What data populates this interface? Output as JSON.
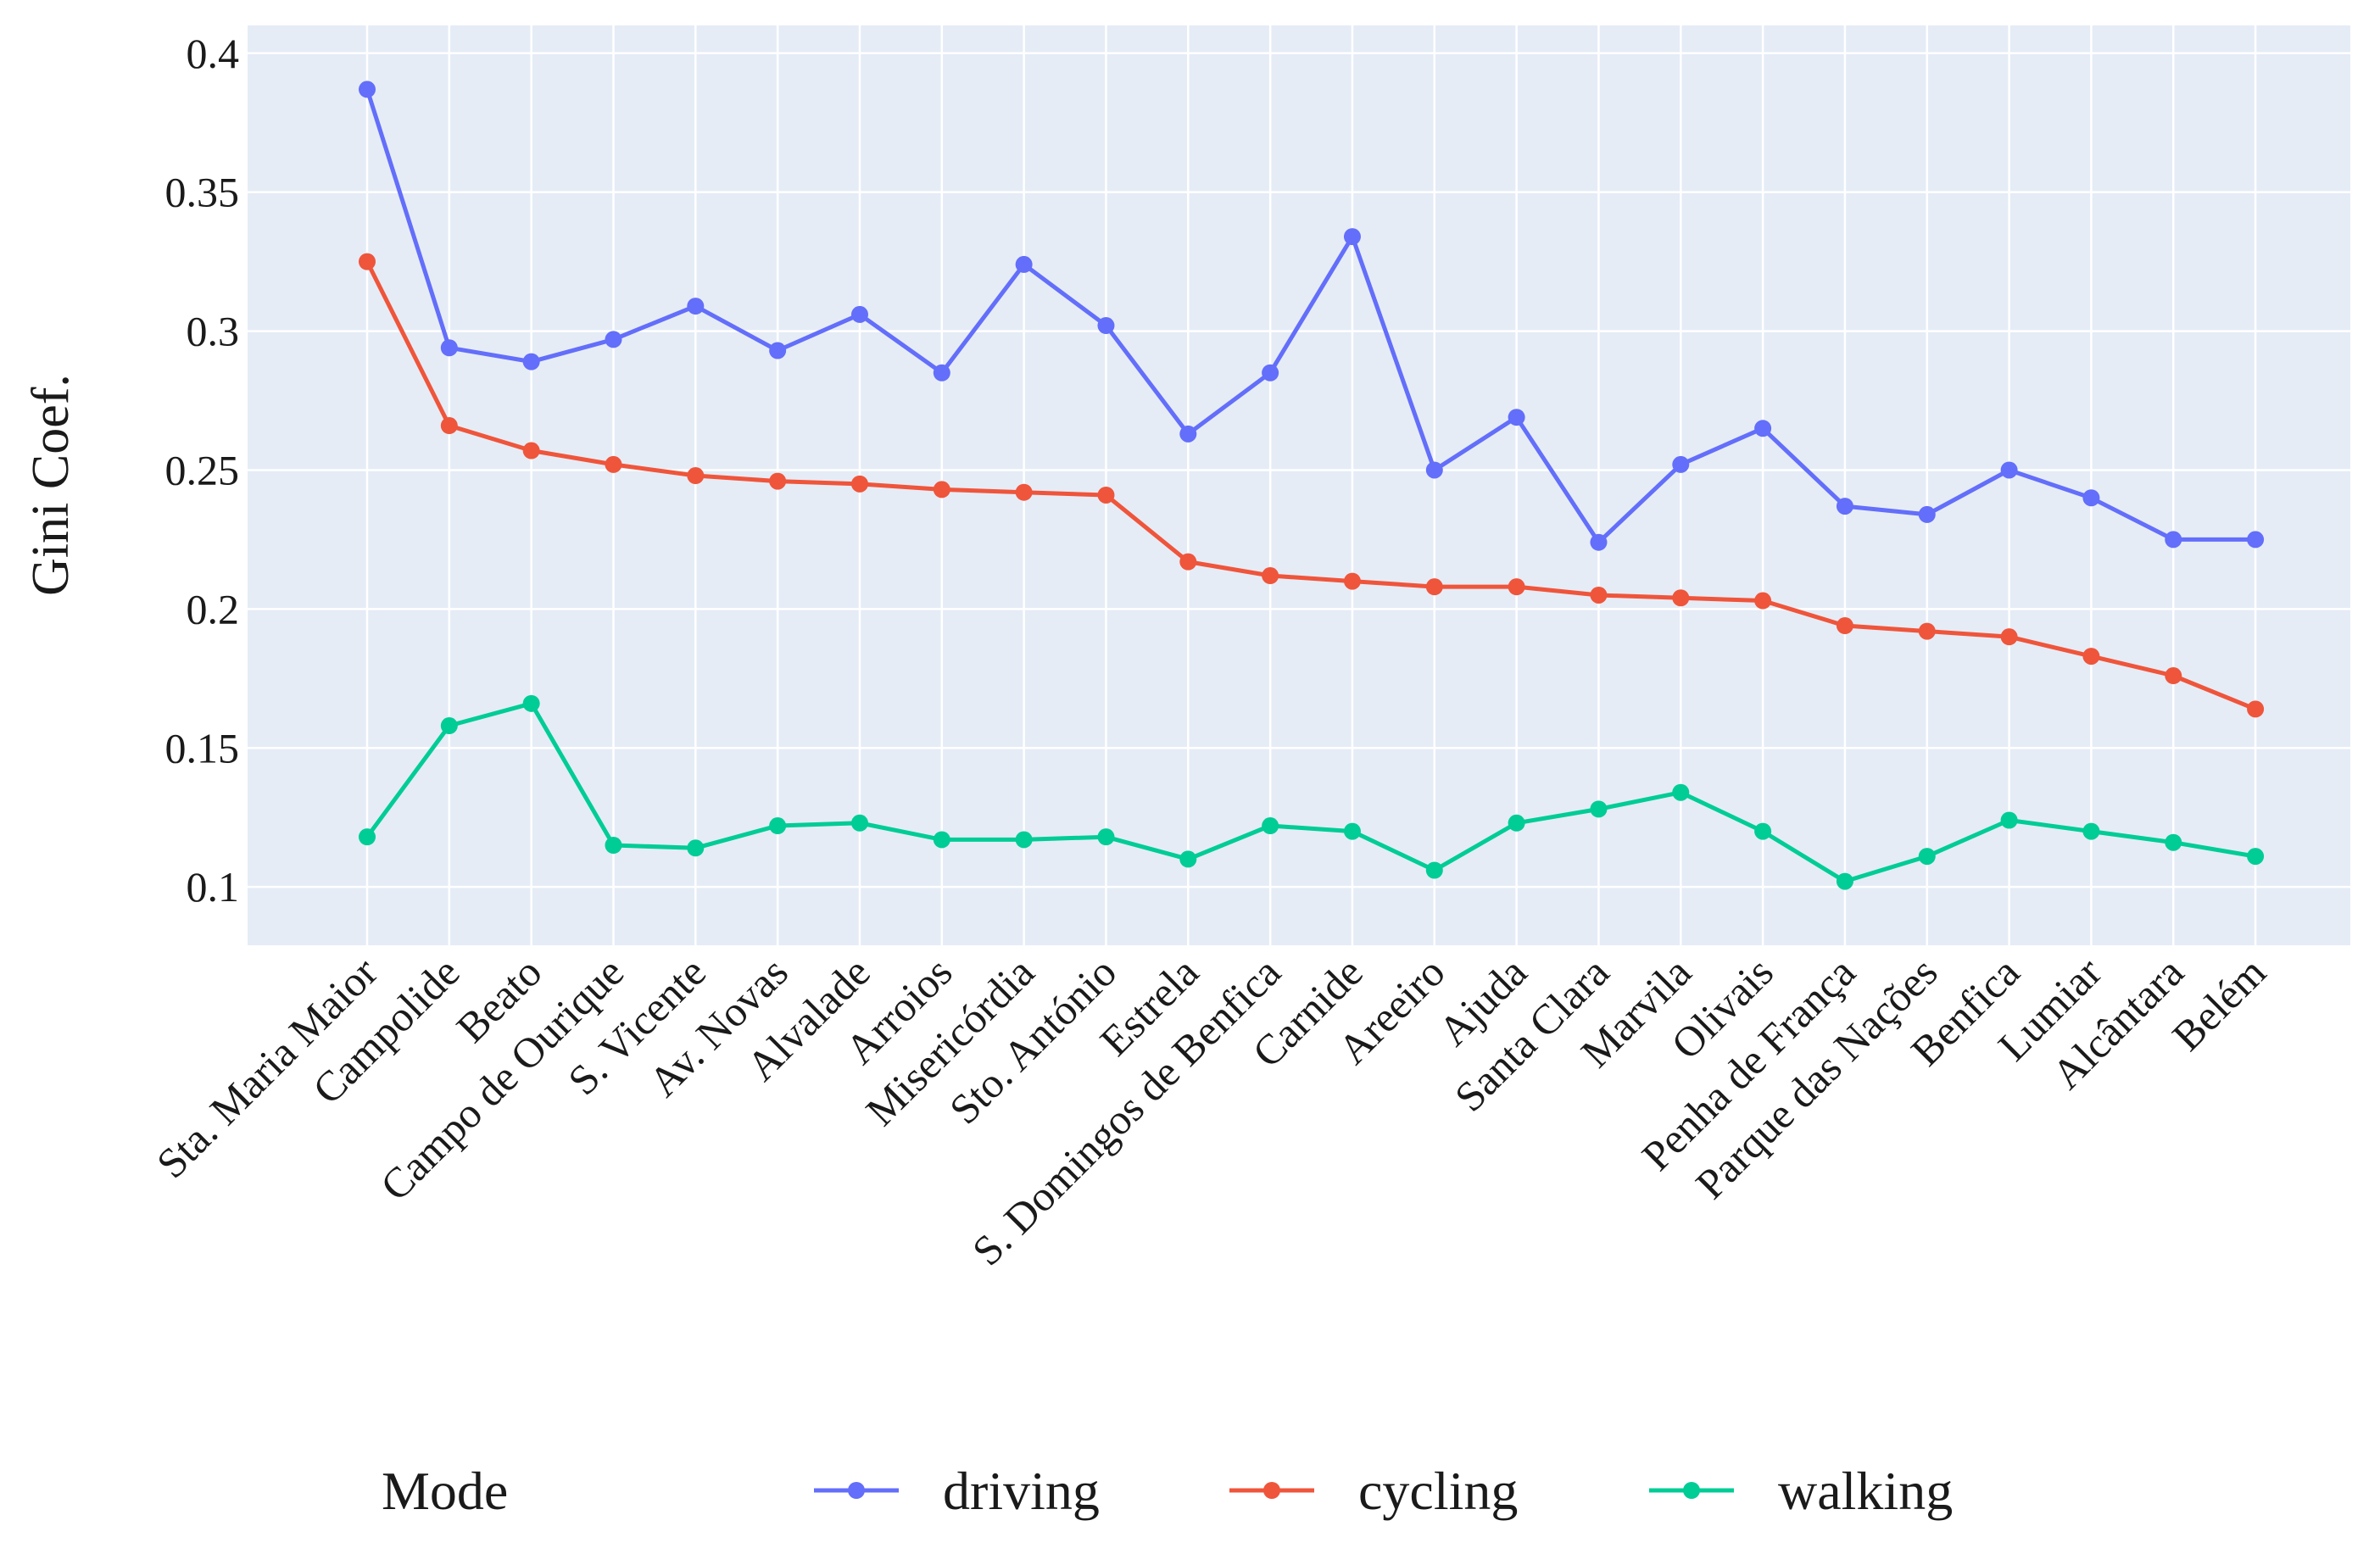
{
  "chart_data": {
    "type": "line",
    "title": "",
    "xlabel": "",
    "ylabel": "Gini Coef.",
    "ylim": [
      0.079,
      0.41
    ],
    "yticks": [
      0.1,
      0.15,
      0.2,
      0.25,
      0.3,
      0.35,
      0.4
    ],
    "ytick_labels": [
      "0.1",
      "0.15",
      "0.2",
      "0.25",
      "0.3",
      "0.35",
      "0.4"
    ],
    "grid": true,
    "legend_position": "bottom",
    "legend_title": "Mode",
    "categories": [
      "Sta. Maria Maior",
      "Campolide",
      "Beato",
      "Campo de Ourique",
      "S. Vicente",
      "Av. Novas",
      "Alvalade",
      "Arroios",
      "Misericórdia",
      "Sto. António",
      "Estrela",
      "S. Domingos de Benfica",
      "Carnide",
      "Areeiro",
      "Ajuda",
      "Santa Clara",
      "Marvila",
      "Olivais",
      "Penha de França",
      "Parque das Nações",
      "Benfica",
      "Lumiar",
      "Alcântara",
      "Belém"
    ],
    "series": [
      {
        "name": "driving",
        "color": "#636efa",
        "values": [
          0.387,
          0.294,
          0.289,
          0.297,
          0.309,
          0.293,
          0.306,
          0.285,
          0.324,
          0.302,
          0.263,
          0.285,
          0.334,
          0.25,
          0.269,
          0.224,
          0.252,
          0.265,
          0.237,
          0.234,
          0.25,
          0.24,
          0.225,
          0.225
        ]
      },
      {
        "name": "cycling",
        "color": "#ef553b",
        "values": [
          0.325,
          0.266,
          0.257,
          0.252,
          0.248,
          0.246,
          0.245,
          0.243,
          0.242,
          0.241,
          0.217,
          0.212,
          0.21,
          0.208,
          0.208,
          0.205,
          0.204,
          0.203,
          0.194,
          0.192,
          0.19,
          0.183,
          0.176,
          0.164
        ]
      },
      {
        "name": "walking",
        "color": "#00cc96",
        "values": [
          0.118,
          0.158,
          0.166,
          0.115,
          0.114,
          0.122,
          0.123,
          0.117,
          0.117,
          0.118,
          0.11,
          0.122,
          0.12,
          0.106,
          0.123,
          0.128,
          0.134,
          0.12,
          0.102,
          0.111,
          0.124,
          0.12,
          0.116,
          0.111
        ]
      }
    ]
  }
}
